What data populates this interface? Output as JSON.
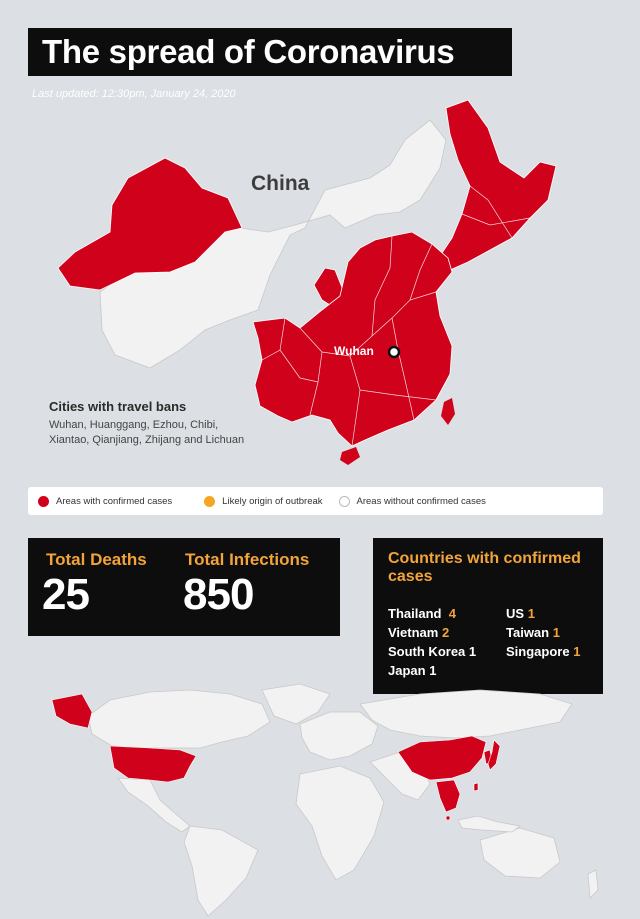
{
  "title": "The spread of Coronavirus",
  "last_updated": "Last updated: 12:30pm, January 24, 2020",
  "map": {
    "country_label": "China",
    "city_label": "Wuhan",
    "colors": {
      "confirmed": "#d0021b",
      "origin": "#f5a623",
      "none": "#f2f2f2",
      "background": "#dcdfe3"
    }
  },
  "travel_bans": {
    "heading": "Cities with travel bans",
    "cities": "Wuhan, Huanggang, Ezhou, Chibi, Xiantao, Qianjiang, Zhijang and Lichuan"
  },
  "legend": {
    "items": [
      {
        "label": "Areas with confirmed cases",
        "color": "#d0021b"
      },
      {
        "label": "Likely origin of outbreak",
        "color": "#f5a623"
      },
      {
        "label": "Areas without confirmed cases",
        "color": "#ffffff"
      }
    ]
  },
  "stats": {
    "deaths_label": "Total Deaths",
    "deaths_value": "25",
    "infections_label": "Total Infections",
    "infections_value": "850"
  },
  "countries": {
    "title": "Countries with confirmed cases",
    "list": [
      {
        "name": "Thailand",
        "count": "4"
      },
      {
        "name": "Vietnam",
        "count": "2"
      },
      {
        "name": "South Korea",
        "count": "1"
      },
      {
        "name": "Japan",
        "count": "1"
      },
      {
        "name": "US",
        "count": "1"
      },
      {
        "name": "Taiwan",
        "count": "1"
      },
      {
        "name": "Singapore",
        "count": "1"
      }
    ]
  }
}
